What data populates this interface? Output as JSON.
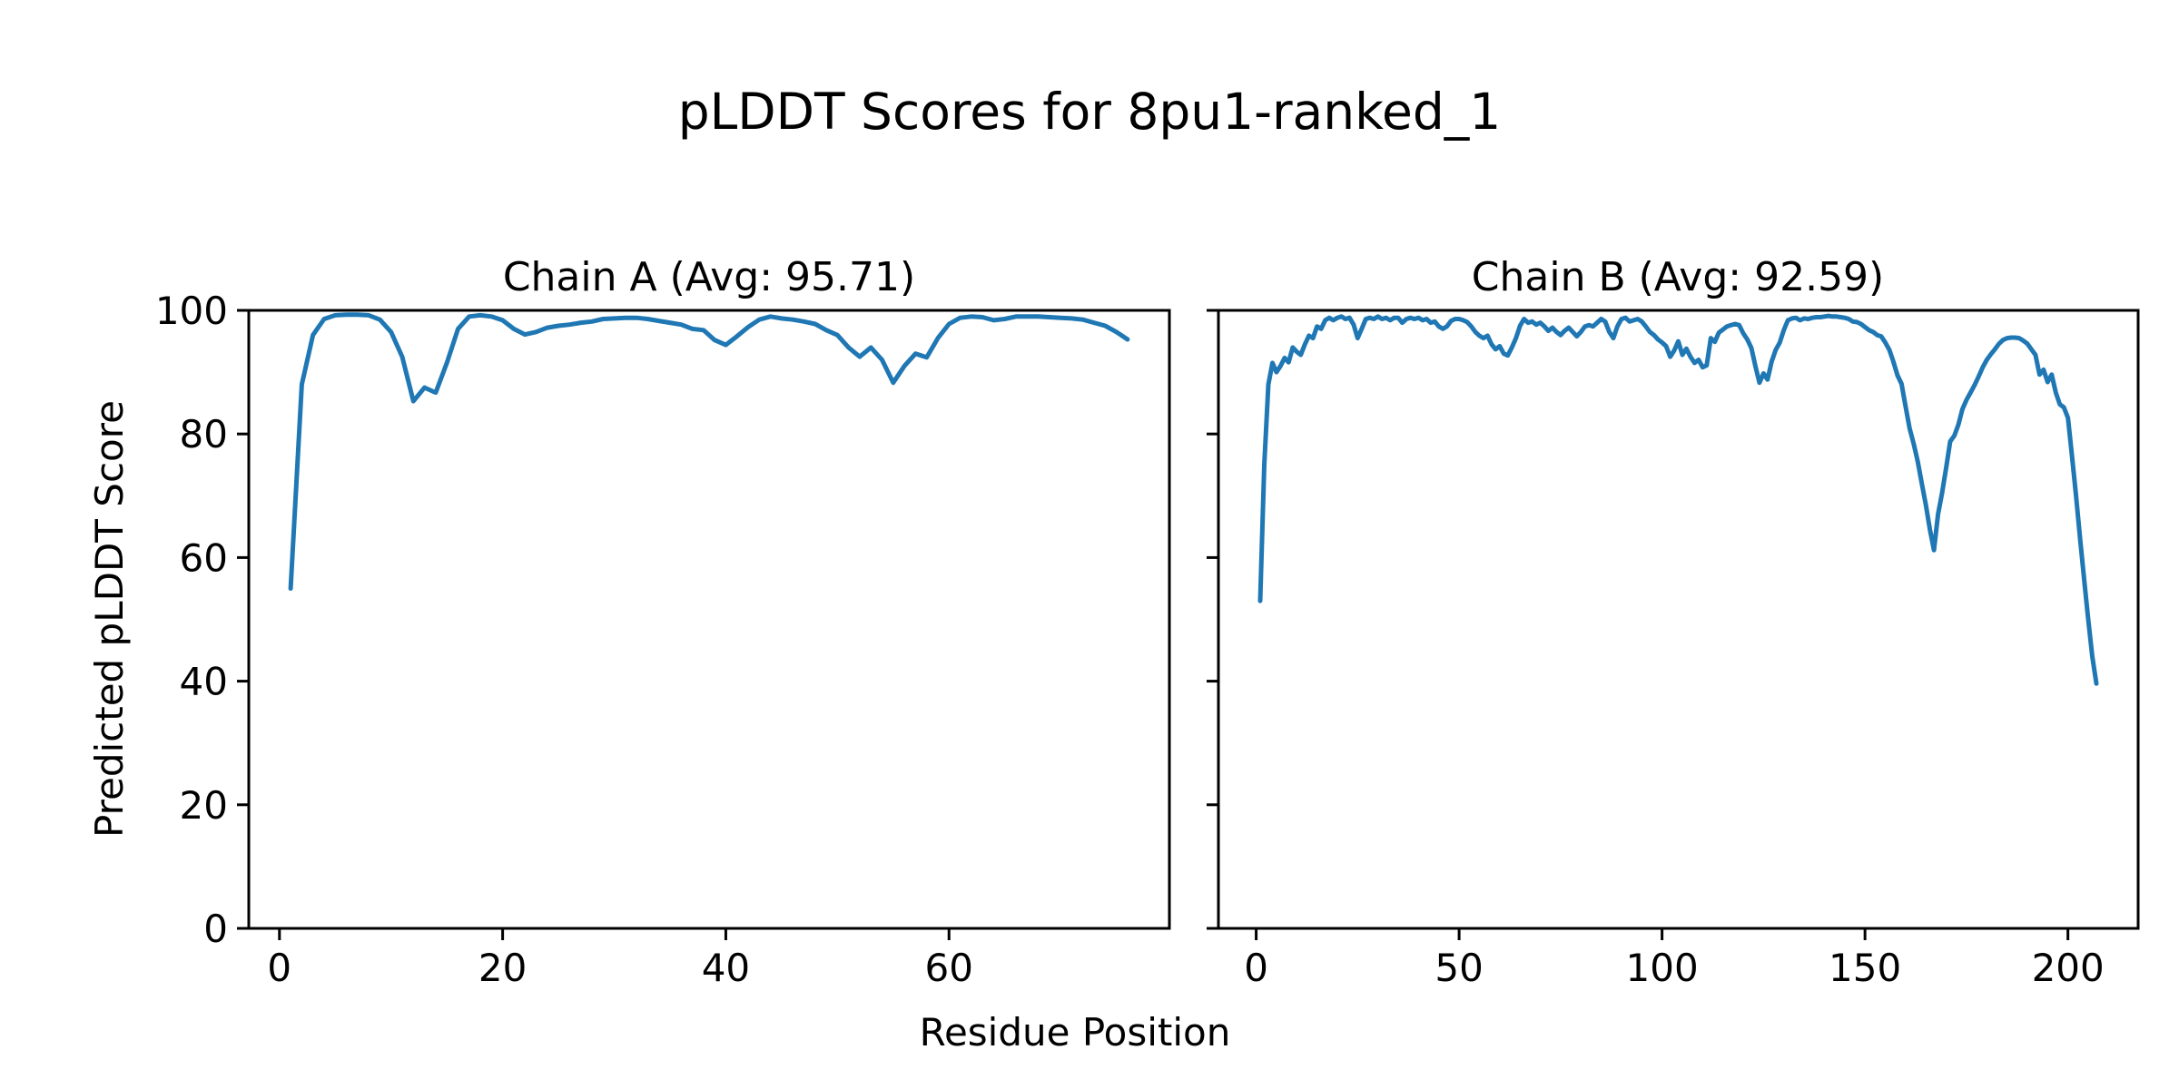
{
  "figure": {
    "suptitle": "pLDDT Scores for 8pu1-ranked_1",
    "supxlabel": "Residue Position",
    "ylabel": "Predicted pLDDT Score",
    "background": "#ffffff",
    "text_color": "#000000",
    "line_color": "#1f77b4",
    "spine_color": "#000000"
  },
  "chart_data": [
    {
      "type": "line",
      "title": "Chain A (Avg: 95.71)",
      "series_name": "Chain A pLDDT",
      "avg": 95.71,
      "n_residues": 76,
      "x_start": 1,
      "xlim": [
        -2.75,
        79.75
      ],
      "ylim": [
        0,
        100
      ],
      "x_ticks": [
        0,
        20,
        40,
        60
      ],
      "y_ticks": [
        0,
        20,
        40,
        60,
        80,
        100
      ],
      "y_tick_labels_visible": true,
      "grid": false,
      "values": [
        55,
        88,
        96,
        98.6,
        99.2,
        99.3,
        99.3,
        99.2,
        98.5,
        96.5,
        92.5,
        85.3,
        87.5,
        86.7,
        91.5,
        97,
        99,
        99.2,
        99,
        98.4,
        97,
        96.1,
        96.5,
        97.2,
        97.5,
        97.7,
        98,
        98.2,
        98.6,
        98.7,
        98.8,
        98.8,
        98.6,
        98.3,
        98,
        97.7,
        97,
        96.8,
        95.2,
        94.4,
        95.8,
        97.3,
        98.5,
        99,
        98.7,
        98.5,
        98.2,
        97.8,
        96.8,
        96,
        94,
        92.5,
        94,
        92,
        88.3,
        91,
        93,
        92.4,
        95.5,
        97.8,
        98.8,
        99,
        98.9,
        98.4,
        98.6,
        99,
        99,
        99,
        98.9,
        98.8,
        98.7,
        98.5,
        98,
        97.5,
        96.5,
        95.3
      ]
    },
    {
      "type": "line",
      "title": "Chain B (Avg: 92.59)",
      "series_name": "Chain B pLDDT",
      "avg": 92.59,
      "n_residues": 207,
      "x_start": 1,
      "xlim": [
        -9.3,
        217.3
      ],
      "ylim": [
        0,
        100
      ],
      "x_ticks": [
        0,
        50,
        100,
        150,
        200
      ],
      "y_ticks": [
        0,
        20,
        40,
        60,
        80,
        100
      ],
      "y_tick_labels_visible": false,
      "grid": false,
      "values": [
        53,
        75,
        88,
        91.5,
        90,
        91,
        92.3,
        91.6,
        94,
        93.3,
        92.8,
        94.5,
        95.9,
        95.5,
        97.4,
        97,
        98.4,
        98.8,
        98.4,
        98.8,
        99,
        98.6,
        98.8,
        97.7,
        95.5,
        97,
        98.6,
        98.8,
        98.6,
        99,
        98.6,
        98.8,
        98.4,
        98.8,
        98.8,
        98,
        98.6,
        98.8,
        98.6,
        98.8,
        98.4,
        98.6,
        98,
        98.2,
        97.4,
        97,
        97.4,
        98.3,
        98.6,
        98.6,
        98.4,
        98.1,
        97.4,
        96.5,
        95.9,
        95.5,
        95.9,
        94.5,
        93.7,
        94.2,
        93,
        92.7,
        94,
        95.5,
        97.5,
        98.6,
        98,
        98.2,
        97.7,
        98,
        97.4,
        96.7,
        97.2,
        96.5,
        96,
        96.7,
        97.2,
        96.5,
        95.8,
        96.5,
        97.4,
        97.6,
        97.4,
        98,
        98.6,
        98.2,
        96.5,
        95.5,
        97.4,
        98.6,
        98.8,
        98.2,
        98.4,
        98.6,
        98.2,
        97.4,
        96.5,
        96,
        95.3,
        94.8,
        94.2,
        92.5,
        93.5,
        95,
        92.8,
        93.8,
        92.5,
        91.5,
        92,
        90.8,
        91.1,
        95.5,
        94.9,
        96.4,
        96.9,
        97.4,
        97.6,
        97.8,
        97.6,
        96.3,
        95.3,
        93.9,
        91,
        88.3,
        89.8,
        88.8,
        91.7,
        93.6,
        94.8,
        96.8,
        98.4,
        98.7,
        98.8,
        98.4,
        98.7,
        98.6,
        98.8,
        98.9,
        98.9,
        99,
        99.1,
        99,
        99,
        98.9,
        98.8,
        98.6,
        98.2,
        98.1,
        97.8,
        97.3,
        96.8,
        96.5,
        96,
        95.8,
        94.8,
        93.6,
        91.7,
        89.5,
        88.1,
        84.5,
        80.9,
        78.4,
        75.5,
        72,
        68.5,
        64.5,
        61.2,
        67,
        70.5,
        74.5,
        78.8,
        79.7,
        81.5,
        84,
        85.5,
        86.7,
        87.9,
        89.3,
        90.8,
        92,
        92.9,
        93.7,
        94.6,
        95.2,
        95.5,
        95.6,
        95.6,
        95.5,
        95.1,
        94.6,
        93.7,
        92.8,
        89.6,
        90.4,
        88.4,
        89.6,
        86.7,
        84.8,
        84.3,
        82.6,
        76.5,
        70,
        63,
        56.5,
        50,
        44,
        39.6
      ]
    }
  ]
}
